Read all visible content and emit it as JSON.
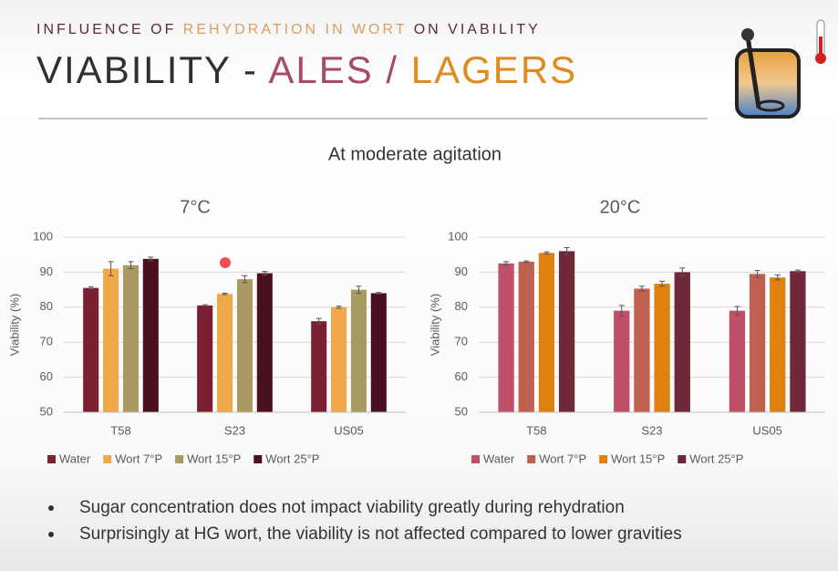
{
  "slide": {
    "kicker_start": "INFLUENCE OF",
    "kicker_highlight": "REHYDRATION IN WORT",
    "kicker_end": "ON VIABILITY",
    "title_start": "VIABILITY -",
    "title_ales": "ALES",
    "title_sep": "/",
    "title_lagers": "LAGERS",
    "subtitle": "At moderate agitation",
    "bullets": [
      "Sugar concentration does not impact viability greatly during rehydration",
      "Surprisingly at HG wort, the viability is not affected compared to lower gravities"
    ]
  },
  "chart_data": [
    {
      "type": "bar",
      "title": "7°C",
      "ylabel": "Viability (%)",
      "categories": [
        "T58",
        "S23",
        "US05"
      ],
      "series": [
        {
          "name": "Water",
          "color": "#7b1f33",
          "values": [
            85.5,
            80.5,
            76
          ],
          "errors": [
            0.3,
            0.2,
            0.8
          ]
        },
        {
          "name": "Wort 7°P",
          "color": "#f0a848",
          "values": [
            91,
            83.8,
            80
          ],
          "errors": [
            2,
            0.2,
            0.3
          ]
        },
        {
          "name": "Wort 15°P",
          "color": "#a89a60",
          "values": [
            92,
            88,
            85
          ],
          "errors": [
            1,
            1,
            1
          ]
        },
        {
          "name": "Wort 25°P",
          "color": "#4a1020",
          "values": [
            93.8,
            89.7,
            84
          ],
          "errors": [
            0.5,
            0.5,
            0.2
          ]
        }
      ],
      "ylim": [
        50,
        100
      ],
      "yticks": [
        50,
        60,
        70,
        80,
        90,
        100
      ],
      "grid": true,
      "legend": "bottom"
    },
    {
      "type": "bar",
      "title": "20°C",
      "ylabel": "Viability (%)",
      "categories": [
        "T58",
        "S23",
        "US05"
      ],
      "series": [
        {
          "name": "Water",
          "color": "#c0506a",
          "values": [
            92.5,
            79,
            79
          ],
          "errors": [
            0.5,
            1.5,
            1.2
          ]
        },
        {
          "name": "Wort 7°P",
          "color": "#c06050",
          "values": [
            93,
            85.3,
            89.5
          ],
          "errors": [
            0.2,
            0.7,
            1
          ]
        },
        {
          "name": "Wort 15°P",
          "color": "#e08010",
          "values": [
            95.5,
            86.7,
            88.5
          ],
          "errors": [
            0.3,
            0.7,
            0.7
          ]
        },
        {
          "name": "Wort 25°P",
          "color": "#702838",
          "values": [
            96,
            90,
            90.3
          ],
          "errors": [
            1,
            1.2,
            0.3
          ]
        }
      ],
      "ylim": [
        50,
        100
      ],
      "yticks": [
        50,
        60,
        70,
        80,
        90,
        100
      ],
      "grid": true,
      "legend": "bottom"
    }
  ]
}
